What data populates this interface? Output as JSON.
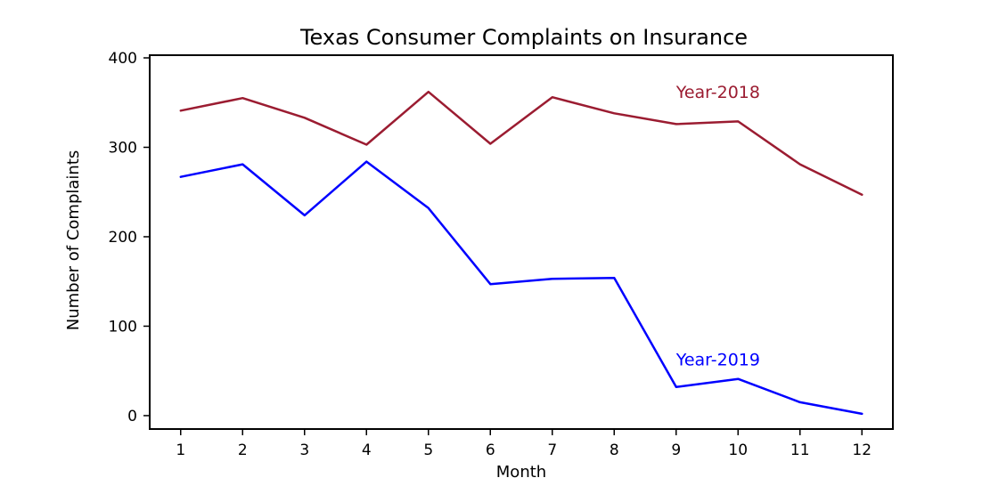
{
  "chart_data": {
    "type": "line",
    "title": "Texas Consumer Complaints on Insurance",
    "xlabel": "Month",
    "ylabel": "Number of Complaints",
    "x": [
      1,
      2,
      3,
      4,
      5,
      6,
      7,
      8,
      9,
      10,
      11,
      12
    ],
    "xlim": [
      0.5,
      12.5
    ],
    "ylim": [
      -15,
      403
    ],
    "yticks": [
      0,
      100,
      200,
      300,
      400
    ],
    "grid": false,
    "legend": "none",
    "series": [
      {
        "name": "Year-2018",
        "color": "#9b1c31",
        "values": [
          341,
          355,
          333,
          303,
          362,
          304,
          356,
          338,
          326,
          329,
          281,
          247
        ]
      },
      {
        "name": "Year-2019",
        "color": "#0000ff",
        "values": [
          267,
          281,
          224,
          284,
          232,
          147,
          153,
          154,
          32,
          41,
          15,
          2
        ]
      }
    ],
    "annotations": [
      {
        "text": "Year-2018",
        "series": 0,
        "x": 9.0,
        "y": 355
      },
      {
        "text": "Year-2019",
        "series": 1,
        "x": 9.0,
        "y": 56
      }
    ]
  }
}
